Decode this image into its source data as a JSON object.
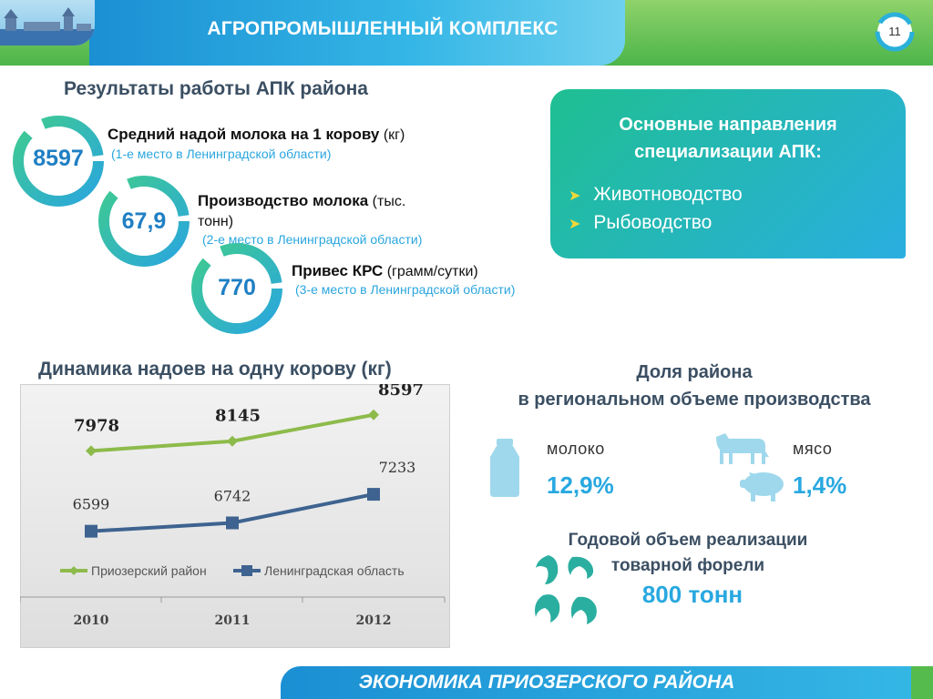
{
  "header": {
    "title": "АГРОПРОМЫШЛЕННЫЙ КОМПЛЕКС",
    "page_number": "11"
  },
  "results": {
    "title": "Результаты работы АПК района",
    "indicators": [
      {
        "value": "8597",
        "label": "Средний надой молока на 1 корову",
        "unit": "(кг)",
        "rank": "(1-е место в Ленинградской области)"
      },
      {
        "value": "67,9",
        "label": "Производство молока",
        "unit_line1": "(тыс.",
        "unit_line2": "тонн)",
        "rank": "(2-е место в Ленинградской области)"
      },
      {
        "value": "770",
        "label": "Привес КРС",
        "unit": "(грамм/сутки)",
        "rank": "(3-е место в Ленинградской области)"
      }
    ]
  },
  "specialization": {
    "title_line1": "Основные направления",
    "title_line2": "специализации АПК:",
    "items": [
      "Животноводство",
      "Рыбоводство"
    ],
    "bullet_icon": "arrow-bullet-icon"
  },
  "chart_data": {
    "type": "line",
    "title": "Динамика надоев на одну корову (кг)",
    "categories": [
      "2010",
      "2011",
      "2012"
    ],
    "series": [
      {
        "name": "Приозерский район",
        "values": [
          7978,
          8145,
          8597
        ],
        "color": "#8dbb4b"
      },
      {
        "name": "Ленинградская область",
        "values": [
          6599,
          6742,
          7233
        ],
        "color": "#3e6390"
      }
    ]
  },
  "share": {
    "title_line1": "Доля района",
    "title_line2": "в региональном объеме производства",
    "milk": {
      "label": "молоко",
      "value": "12,9%",
      "icon": "milk-bottle-icon"
    },
    "meat": {
      "label": "мясо",
      "value": "1,4%",
      "icons": [
        "cow-icon",
        "pig-icon"
      ]
    }
  },
  "trout": {
    "title_line1": "Годовой объем реализации",
    "title_line2": "товарной форели",
    "volume": "800 тонн",
    "icon": "fish-icon"
  },
  "footer": {
    "text": "ЭКОНОМИКА ПРИОЗЕРСКОГО РАЙОНА"
  },
  "colors": {
    "accent_blue": "#28a8e0",
    "accent_green": "#4cb54a",
    "heading": "#3b4f63",
    "highlight": "#f6d838"
  }
}
